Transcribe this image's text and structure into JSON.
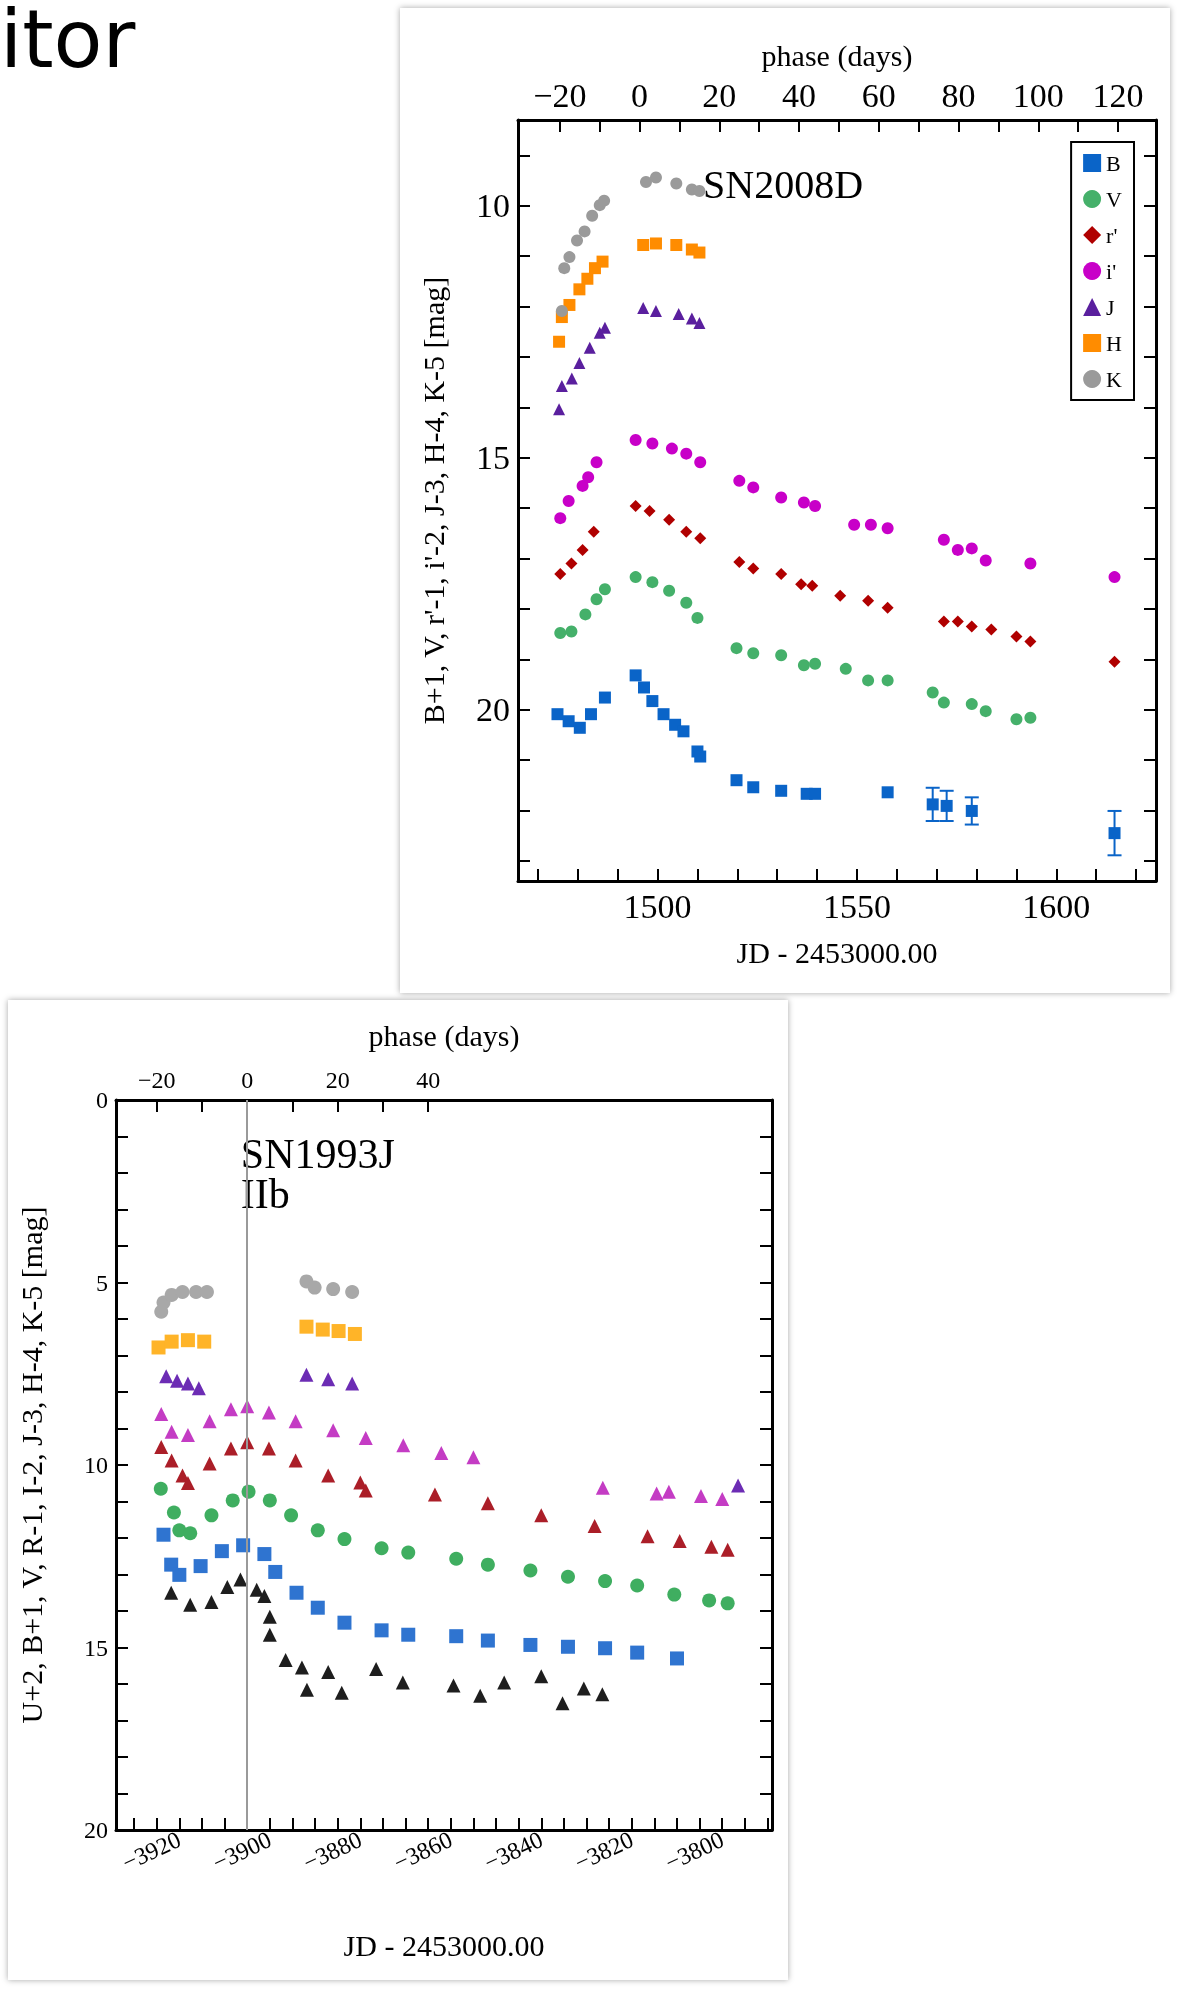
{
  "chart_data": [
    {
      "type": "other",
      "title": "itor"
    },
    {
      "type": "scatter",
      "xlabel": "JD - 2453000.00",
      "ylabel": "B+1, V, r'-1, i'-2, J-3, H-4, K-5 [mag]",
      "x2label": "phase (days)",
      "xlim": [
        1465,
        1625
      ],
      "xticks": [
        {
          "value": 1470,
          "label": null
        },
        {
          "value": 1480,
          "label": null
        },
        {
          "value": 1490,
          "label": null
        },
        1500,
        {
          "value": 1510,
          "label": null
        },
        {
          "value": 1520,
          "label": null
        },
        {
          "value": 1530,
          "label": null
        },
        {
          "value": 1540,
          "label": null
        },
        1550,
        {
          "value": 1560,
          "label": null
        },
        {
          "value": 1570,
          "label": null
        },
        {
          "value": 1580,
          "label": null
        },
        {
          "value": 1590,
          "label": null
        },
        1600,
        {
          "value": 1610,
          "label": null
        },
        {
          "value": 1620,
          "label": null
        }
      ],
      "x2lim": [
        -30.5,
        129.5
      ],
      "x2ticks": [
        {
          "value": -20,
          "label": "−20"
        },
        {
          "value": -10,
          "label": null
        },
        0,
        {
          "value": 10,
          "label": null
        },
        20,
        {
          "value": 30,
          "label": null
        },
        40,
        {
          "value": 50,
          "label": null
        },
        60,
        {
          "value": 70,
          "label": null
        },
        80,
        {
          "value": 90,
          "label": null
        },
        100,
        {
          "value": 110,
          "label": null
        },
        120
      ],
      "ylim": [
        23.4,
        8.3
      ],
      "yticks": [
        {
          "value": 9,
          "label": null
        },
        10,
        {
          "value": 11,
          "label": null
        },
        {
          "value": 12,
          "label": null
        },
        {
          "value": 13,
          "label": null
        },
        {
          "value": 14,
          "label": null
        },
        15,
        {
          "value": 16,
          "label": null
        },
        {
          "value": 17,
          "label": null
        },
        {
          "value": 18,
          "label": null
        },
        {
          "value": 19,
          "label": null
        },
        20,
        {
          "value": 21,
          "label": null
        },
        {
          "value": 22,
          "label": null
        },
        {
          "value": 23,
          "label": null
        }
      ],
      "grid": false,
      "legend": "top right",
      "annotations": [
        "SN2008D"
      ],
      "series": [
        {
          "name": "B",
          "color": "#0a64c8",
          "marker": "square",
          "x": [
            1474.9,
            1477.7,
            1480.5,
            1483.3,
            1486.1,
            1486.8,
            1494.5,
            1496.6,
            1498.7,
            1501.5,
            1504.4,
            1506.5,
            1510,
            1510.7,
            1519.8,
            1524,
            1531,
            1537.4,
            1539.5,
            1557.7,
            1569,
            1572.5,
            1578.8,
            1614.6
          ],
          "values": [
            20.09,
            20.23,
            20.36,
            20.09,
            null,
            19.76,
            19.32,
            19.56,
            19.83,
            20.09,
            20.3,
            20.43,
            20.83,
            20.93,
            21.4,
            21.54,
            21.61,
            21.67,
            21.67,
            21.64,
            21.88,
            21.91,
            22.01,
            22.45
          ],
          "errors": [
            null,
            null,
            null,
            null,
            null,
            null,
            null,
            null,
            null,
            null,
            null,
            null,
            null,
            null,
            null,
            null,
            null,
            null,
            null,
            null,
            0.33,
            0.3,
            0.27,
            0.44
          ]
        },
        {
          "name": "V",
          "color": "#45b06a",
          "marker": "circle",
          "x": [
            1475.6,
            1478.4,
            1481.9,
            1484.7,
            1486.8,
            1494.5,
            1498.7,
            1502.9,
            1507.2,
            1510,
            1519.8,
            1524,
            1531,
            1536.7,
            1539.5,
            1547.2,
            1552.8,
            1557.7,
            1569,
            1571.8,
            1578.8,
            1582.3,
            1590,
            1593.5
          ],
          "values": [
            18.48,
            18.45,
            18.11,
            17.81,
            17.61,
            17.37,
            17.47,
            17.64,
            17.88,
            18.18,
            18.78,
            18.88,
            18.92,
            19.12,
            19.09,
            19.19,
            19.42,
            19.42,
            19.66,
            19.86,
            19.89,
            20.03,
            20.19,
            20.16
          ]
        },
        {
          "name": "r'",
          "color": "#b00000",
          "marker": "diamond",
          "x": [
            1475.6,
            1478.4,
            1481.2,
            1484,
            1494.5,
            1498,
            1502.9,
            1507.2,
            1510.7,
            1520.5,
            1524,
            1531,
            1536,
            1538.8,
            1545.8,
            1552.8,
            1557.7,
            1571.8,
            1575.3,
            1578.8,
            1583.7,
            1590,
            1593.5,
            1614.6
          ],
          "values": [
            17.31,
            17.1,
            16.83,
            16.47,
            15.96,
            16.06,
            16.23,
            16.47,
            16.6,
            17.07,
            17.2,
            17.31,
            17.51,
            17.54,
            17.74,
            17.84,
            17.98,
            18.25,
            18.25,
            18.35,
            18.41,
            18.55,
            18.65,
            19.05
          ]
        },
        {
          "name": "i'",
          "color": "#c800c8",
          "marker": "circle",
          "x": [
            1475.6,
            1477.7,
            1481.2,
            1482.6,
            1484.7,
            1494.5,
            1498.7,
            1503.6,
            1507.2,
            1510.7,
            1520.5,
            1524,
            1531,
            1536.7,
            1539.5,
            1549.3,
            1553.5,
            1557.7,
            1571.8,
            1575.3,
            1578.8,
            1582.3,
            1593.5,
            1614.6
          ],
          "values": [
            16.2,
            15.86,
            15.56,
            15.39,
            15.09,
            14.65,
            14.72,
            14.82,
            14.92,
            15.09,
            15.46,
            15.59,
            15.79,
            15.89,
            15.96,
            16.33,
            16.33,
            16.4,
            16.63,
            16.83,
            16.8,
            17.04,
            17.1,
            17.37
          ]
        },
        {
          "name": "J",
          "color": "#5a1f9e",
          "marker": "triangle",
          "x": [
            1475.3,
            1476,
            1478.5,
            1480.4,
            1483,
            1485.5,
            1486.8,
            1496.4,
            1499.6,
            1505.3,
            1508.6,
            1510.5
          ],
          "values": [
            14.04,
            13.58,
            13.43,
            13.12,
            12.82,
            12.52,
            12.42,
            12.03,
            12.09,
            12.15,
            12.24,
            12.33
          ]
        },
        {
          "name": "H",
          "color": "#ff8c00",
          "marker": "square",
          "x": [
            1475.3,
            1476,
            1477.9,
            1480.4,
            1482.4,
            1484.3,
            1486.2,
            1496.4,
            1499.6,
            1504.7,
            1508.6,
            1510.5
          ],
          "values": [
            12.7,
            12.21,
            11.97,
            11.66,
            11.45,
            11.24,
            11.11,
            10.78,
            10.75,
            10.78,
            10.87,
            10.93
          ]
        },
        {
          "name": "K",
          "color": "#9a9a9a",
          "marker": "circle",
          "x": [
            1476,
            1476.6,
            1477.9,
            1479.8,
            1481.7,
            1483.6,
            1485.5,
            1486.6,
            1497.1,
            1499.6,
            1504.7,
            1508.6,
            1510.5
          ],
          "values": [
            12.09,
            11.24,
            11.02,
            10.69,
            10.51,
            10.2,
            9.99,
            9.9,
            9.53,
            9.44,
            9.56,
            9.68,
            9.71
          ]
        }
      ]
    },
    {
      "type": "scatter",
      "xlabel": "JD - 2453000.00",
      "ylabel": "U+2, B+1, V, R-1, I-2, J-3, H-4, K-5 [mag]",
      "x2label": "phase (days)",
      "xlim": [
        -3934,
        -3789
      ],
      "xticks": [
        {
          "value": -3930,
          "label": null
        },
        {
          "value": -3925,
          "label": null
        },
        {
          "value": -3920,
          "label": "−3920"
        },
        {
          "value": -3915,
          "label": null
        },
        {
          "value": -3910,
          "label": null
        },
        {
          "value": -3905,
          "label": null
        },
        {
          "value": -3900,
          "label": "−3900"
        },
        {
          "value": -3895,
          "label": null
        },
        {
          "value": -3890,
          "label": null
        },
        {
          "value": -3885,
          "label": null
        },
        {
          "value": -3880,
          "label": "−3880"
        },
        {
          "value": -3875,
          "label": null
        },
        {
          "value": -3870,
          "label": null
        },
        {
          "value": -3865,
          "label": null
        },
        {
          "value": -3860,
          "label": "−3860"
        },
        {
          "value": -3855,
          "label": null
        },
        {
          "value": -3850,
          "label": null
        },
        {
          "value": -3845,
          "label": null
        },
        {
          "value": -3840,
          "label": "−3840"
        },
        {
          "value": -3835,
          "label": null
        },
        {
          "value": -3830,
          "label": null
        },
        {
          "value": -3825,
          "label": null
        },
        {
          "value": -3820,
          "label": "−3820"
        },
        {
          "value": -3815,
          "label": null
        },
        {
          "value": -3810,
          "label": null
        },
        {
          "value": -3805,
          "label": null
        },
        {
          "value": -3800,
          "label": "−3800"
        },
        {
          "value": -3795,
          "label": null
        },
        {
          "value": -3790,
          "label": null
        }
      ],
      "x2lim": [
        -29,
        116
      ],
      "x2ticks": [
        {
          "value": -20,
          "label": "−20"
        },
        {
          "value": -10,
          "label": null
        },
        0,
        {
          "value": 10,
          "label": null
        },
        20,
        {
          "value": 30,
          "label": null
        },
        40
      ],
      "ylim": [
        20,
        0
      ],
      "yticks": [
        0,
        {
          "value": 1,
          "label": null
        },
        {
          "value": 2,
          "label": null
        },
        {
          "value": 3,
          "label": null
        },
        {
          "value": 4,
          "label": null
        },
        5,
        {
          "value": 6,
          "label": null
        },
        {
          "value": 7,
          "label": null
        },
        {
          "value": 8,
          "label": null
        },
        {
          "value": 9,
          "label": null
        },
        10,
        {
          "value": 11,
          "label": null
        },
        {
          "value": 12,
          "label": null
        },
        {
          "value": 13,
          "label": null
        },
        {
          "value": 14,
          "label": null
        },
        15,
        {
          "value": 16,
          "label": null
        },
        {
          "value": 17,
          "label": null
        },
        {
          "value": 18,
          "label": null
        },
        {
          "value": 19,
          "label": null
        },
        20
      ],
      "grid": false,
      "annotations": [
        "SN1993J",
        "IIb"
      ],
      "ref_lines": [
        {
          "axis": "x",
          "value": -3905,
          "color": "#9a9a9a"
        }
      ],
      "series": [
        {
          "color": "#1e1e1e",
          "marker": "triangle",
          "x": [
            -3921.8,
            -3917.6,
            -3912.9,
            -3909.4,
            -3906.5,
            -3902.9,
            -3901.2,
            -3900,
            -3900,
            -3896.5,
            -3892.9,
            -3891.8,
            -3887.1,
            -3884.1,
            -3876.5,
            -3870.6,
            -3859.4,
            -3853.5,
            -3848.2,
            -3840,
            -3835.3,
            -3830.6,
            -3826.5
          ],
          "values": [
            13.5,
            13.83,
            13.75,
            13.34,
            13.14,
            13.42,
            13.59,
            14.16,
            14.65,
            15.34,
            15.55,
            16.16,
            15.67,
            16.24,
            15.59,
            15.96,
            16.04,
            16.32,
            15.96,
            15.79,
            16.53,
            16.12,
            16.28
          ]
        },
        {
          "color": "#2f74d0",
          "marker": "square",
          "x": [
            -3923.5,
            -3921.8,
            -3920,
            -3915.3,
            -3910.6,
            -3905.9,
            -3901.2,
            -3898.8,
            -3894.1,
            -3889.4,
            -3883.5,
            -3875.3,
            -3869.4,
            -3858.8,
            -3851.8,
            -3842.4,
            -3834.1,
            -3825.9,
            -3818.8,
            -3810
          ],
          "values": [
            11.91,
            12.73,
            13.01,
            12.77,
            12.36,
            12.2,
            12.44,
            12.93,
            13.5,
            13.91,
            14.32,
            14.53,
            14.65,
            14.69,
            14.81,
            14.93,
            14.98,
            15.02,
            15.14,
            15.3
          ]
        },
        {
          "color": "#3fae60",
          "marker": "circle",
          "x": [
            -3924.1,
            -3921.2,
            -3920,
            -3917.6,
            -3912.9,
            -3908.2,
            -3904.7,
            -3900,
            -3895.3,
            -3889.4,
            -3883.5,
            -3875.3,
            -3869.4,
            -3858.8,
            -3851.8,
            -3842.4,
            -3834.1,
            -3825.9,
            -3818.8,
            -3810.6,
            -3802.9,
            -3798.8
          ],
          "values": [
            10.65,
            11.3,
            11.79,
            11.87,
            11.38,
            10.97,
            10.73,
            10.97,
            11.38,
            11.79,
            12.03,
            12.28,
            12.4,
            12.57,
            12.73,
            12.89,
            13.06,
            13.18,
            13.3,
            13.55,
            13.71,
            13.79
          ]
        },
        {
          "color": "#ab1e28",
          "marker": "triangle",
          "x": [
            -3924,
            -3921.7,
            -3919.3,
            -3918.1,
            -3913.3,
            -3908.6,
            -3905,
            -3900.2,
            -3894.3,
            -3887.1,
            -3880,
            -3878.8,
            -3863.5,
            -3851.8,
            -3840,
            -3828.2,
            -3816.5,
            -3809.4,
            -3802.4,
            -3798.8
          ],
          "values": [
            9.51,
            9.88,
            10.29,
            10.49,
            9.96,
            9.55,
            9.38,
            9.55,
            9.88,
            10.29,
            10.48,
            10.7,
            10.81,
            11.05,
            11.38,
            11.67,
            11.95,
            12.08,
            12.24,
            12.32
          ]
        },
        {
          "color": "#c43cc4",
          "marker": "triangle",
          "x": [
            -3924,
            -3921.7,
            -3918.1,
            -3913.3,
            -3908.6,
            -3905,
            -3900.2,
            -3894.3,
            -3886,
            -3878.8,
            -3870.5,
            -3862.1,
            -3855,
            -3826.4,
            -3814.5,
            -3811.8,
            -3804.7,
            -3800
          ],
          "values": [
            8.6,
            9.09,
            9.18,
            8.8,
            8.47,
            8.39,
            8.56,
            8.8,
            9.05,
            9.26,
            9.46,
            9.67,
            9.79,
            10.62,
            10.78,
            10.73,
            10.85,
            10.93
          ]
        },
        {
          "color": "#6c2cb4",
          "marker": "triangle",
          "x": [
            -3922.9,
            -3920.5,
            -3918.1,
            -3915.7,
            -3891.9,
            -3887.1,
            -3881.8,
            -3796.5
          ],
          "values": [
            7.57,
            7.69,
            7.77,
            7.9,
            7.53,
            7.65,
            7.77,
            10.56
          ]
        },
        {
          "color": "#ffb428",
          "marker": "square",
          "x": [
            -3924.6,
            -3921.7,
            -3918.1,
            -3914.5,
            -3891.9,
            -3888.3,
            -3884.8,
            -3881.2
          ],
          "values": [
            6.78,
            6.62,
            6.58,
            6.62,
            6.21,
            6.29,
            6.33,
            6.41
          ]
        },
        {
          "color": "#a8a8a8",
          "marker": "circle",
          "x": [
            -3924,
            -3923.5,
            -3921.7,
            -3919.3,
            -3916.3,
            -3913.9,
            -3891.9,
            -3890.1,
            -3886,
            -3881.8
          ],
          "values": [
            5.8,
            5.55,
            5.34,
            5.26,
            5.26,
            5.26,
            4.97,
            5.14,
            5.18,
            5.26
          ]
        }
      ]
    }
  ]
}
